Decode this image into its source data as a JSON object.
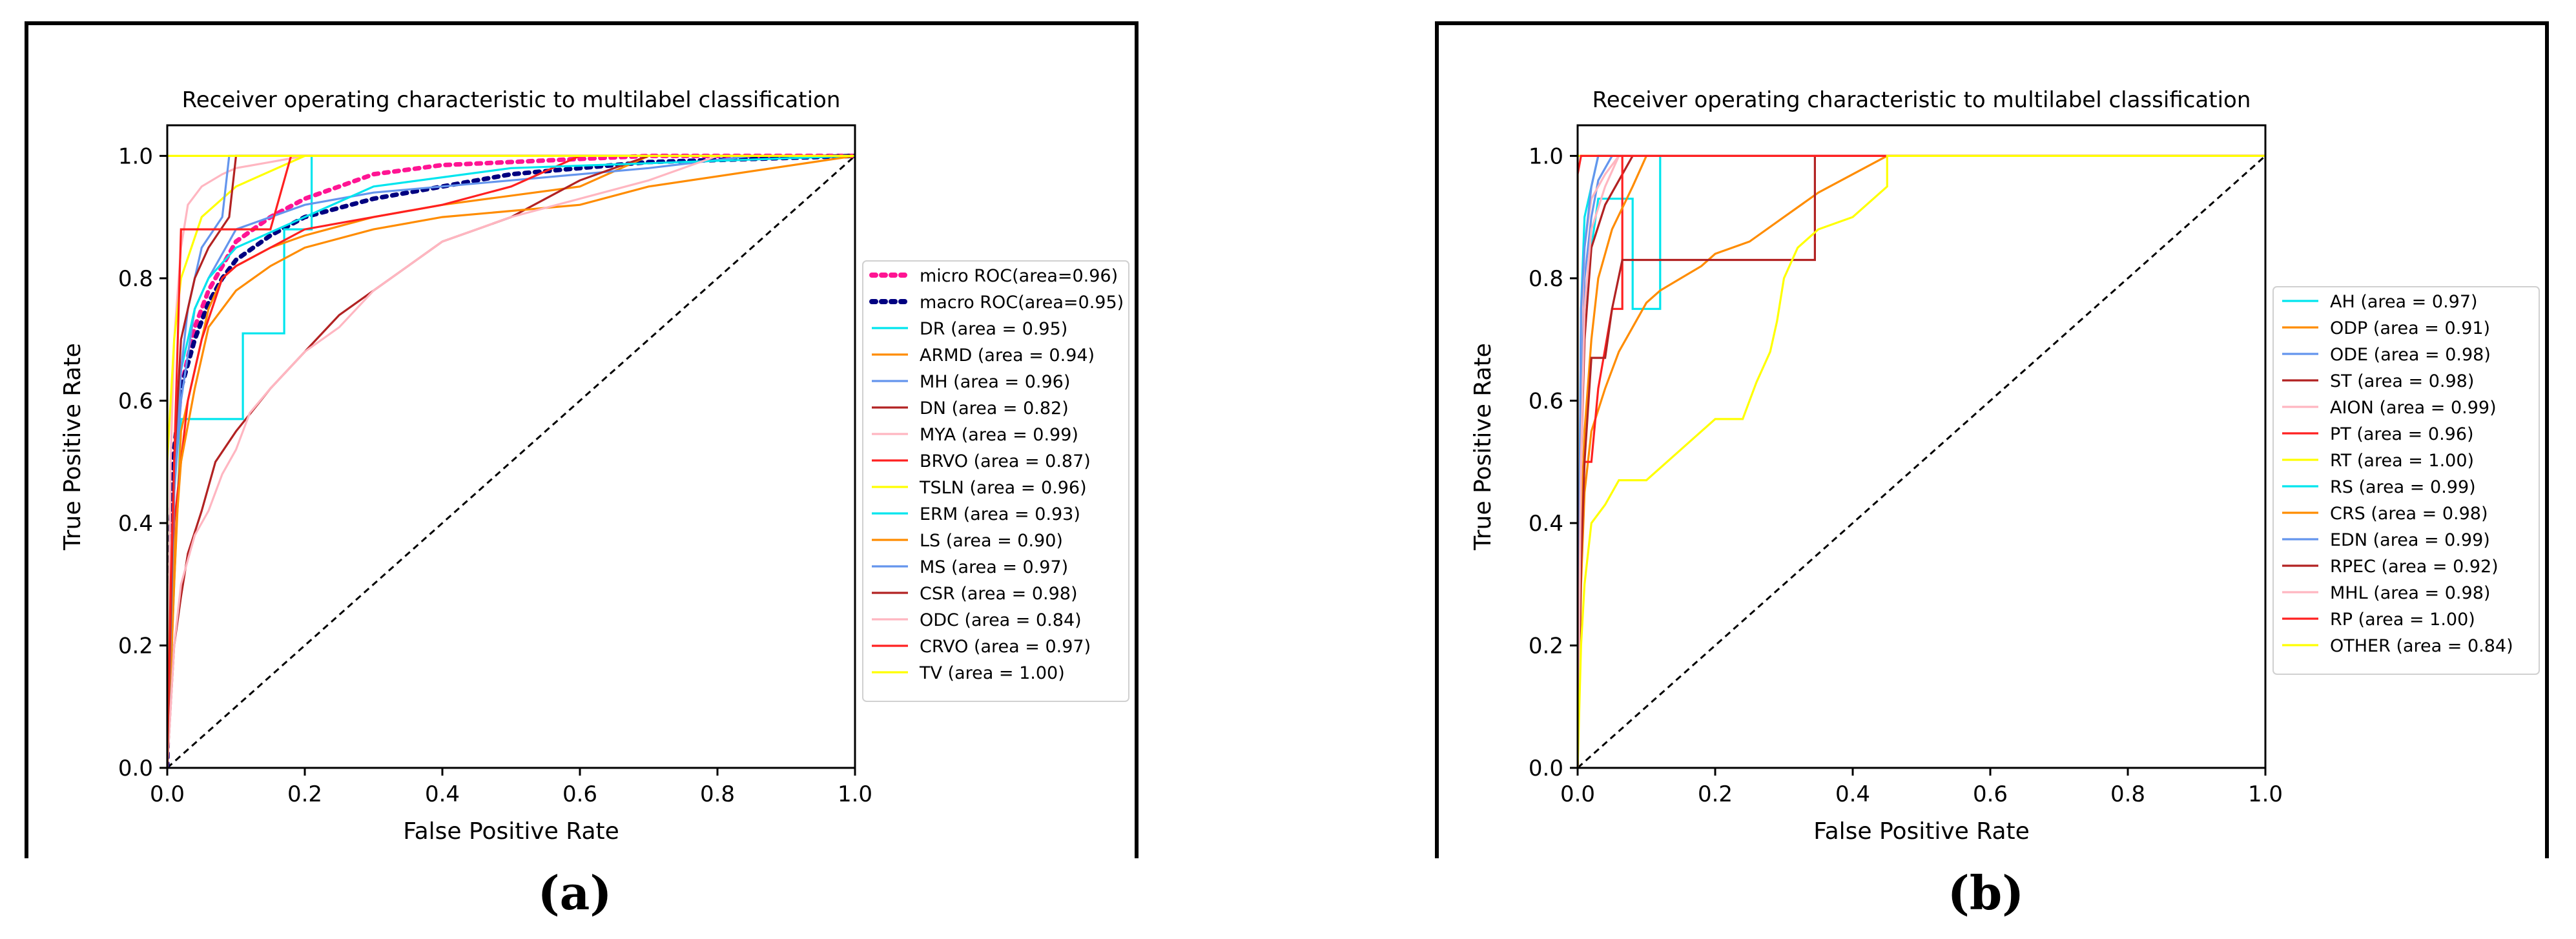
{
  "panel_labels": {
    "a": "(a)",
    "b": "(b)"
  },
  "chart_data": [
    {
      "type": "line",
      "title": "Receiver operating characteristic to multilabel classification",
      "xlabel": "False Positive Rate",
      "ylabel": "True Positive Rate",
      "xlim": [
        0,
        1
      ],
      "ylim": [
        0,
        1.05
      ],
      "xticks": [
        "0.0",
        "0.2",
        "0.4",
        "0.6",
        "0.8",
        "1.0"
      ],
      "yticks": [
        "0.0",
        "0.2",
        "0.4",
        "0.6",
        "0.8",
        "1.0"
      ],
      "legend_position": "right",
      "diagonal": "dashed black reference line",
      "series": [
        {
          "name": "micro ROC(area=0.96)",
          "color": "#ff1493",
          "style": "dotted",
          "x": [
            0,
            0.005,
            0.01,
            0.02,
            0.04,
            0.06,
            0.08,
            0.1,
            0.15,
            0.2,
            0.25,
            0.3,
            0.4,
            0.5,
            0.6,
            0.7,
            1
          ],
          "y": [
            0,
            0.35,
            0.5,
            0.62,
            0.72,
            0.78,
            0.82,
            0.86,
            0.9,
            0.93,
            0.95,
            0.97,
            0.985,
            0.99,
            0.995,
            1,
            1
          ]
        },
        {
          "name": "macro ROC(area=0.95)",
          "color": "#000080",
          "style": "dotted",
          "x": [
            0,
            0.005,
            0.01,
            0.02,
            0.04,
            0.06,
            0.08,
            0.1,
            0.15,
            0.2,
            0.3,
            0.4,
            0.5,
            0.6,
            0.7,
            1
          ],
          "y": [
            0,
            0.4,
            0.52,
            0.62,
            0.7,
            0.76,
            0.8,
            0.83,
            0.87,
            0.9,
            0.93,
            0.95,
            0.97,
            0.98,
            0.99,
            1
          ]
        },
        {
          "name": "DR (area = 0.95)",
          "color": "#00e5ee",
          "x": [
            0,
            0.01,
            0.02,
            0.05,
            0.05,
            0.11,
            0.11,
            0.17,
            0.17,
            0.21,
            0.21,
            0.3,
            0.5,
            1
          ],
          "y": [
            0,
            0.3,
            0.57,
            0.57,
            0.57,
            0.57,
            0.71,
            0.71,
            0.88,
            0.88,
            1,
            1,
            1,
            1
          ]
        },
        {
          "name": "ARMD (area = 0.94)",
          "color": "#ff8c00",
          "x": [
            0,
            0.01,
            0.02,
            0.04,
            0.06,
            0.08,
            0.1,
            0.15,
            0.2,
            0.3,
            0.4,
            0.6,
            0.7,
            1
          ],
          "y": [
            0,
            0.3,
            0.55,
            0.65,
            0.75,
            0.8,
            0.82,
            0.85,
            0.87,
            0.9,
            0.92,
            0.95,
            1,
            1
          ]
        },
        {
          "name": "MH (area = 0.96)",
          "color": "#6495ed",
          "x": [
            0,
            0.01,
            0.02,
            0.04,
            0.06,
            0.08,
            0.1,
            0.2,
            0.3,
            0.5,
            0.7,
            0.85,
            1
          ],
          "y": [
            0,
            0.45,
            0.6,
            0.75,
            0.8,
            0.84,
            0.88,
            0.92,
            0.94,
            0.96,
            0.98,
            1,
            1
          ]
        },
        {
          "name": "DN (area = 0.82)",
          "color": "#b22222",
          "x": [
            0,
            0.005,
            0.01,
            0.02,
            0.03,
            0.05,
            0.07,
            0.1,
            0.15,
            0.2,
            0.25,
            0.3,
            0.35,
            0.4,
            0.45,
            0.5,
            0.55,
            0.6,
            0.65,
            0.7,
            1
          ],
          "y": [
            0,
            0.1,
            0.2,
            0.28,
            0.35,
            0.42,
            0.5,
            0.55,
            0.62,
            0.68,
            0.74,
            0.78,
            0.82,
            0.86,
            0.88,
            0.9,
            0.93,
            0.96,
            0.98,
            1,
            1
          ]
        },
        {
          "name": "MYA (area = 0.99)",
          "color": "#ffb6c1",
          "x": [
            0,
            0.005,
            0.01,
            0.02,
            0.03,
            0.05,
            0.08,
            0.1,
            0.15,
            0.2,
            0.3,
            0.5,
            0.8,
            1
          ],
          "y": [
            0,
            0.5,
            0.7,
            0.85,
            0.92,
            0.95,
            0.97,
            0.98,
            0.99,
            1,
            1,
            1,
            1,
            1
          ]
        },
        {
          "name": "BRVO (area = 0.87)",
          "color": "#ff2020",
          "x": [
            0,
            0.005,
            0.01,
            0.02,
            0.03,
            0.05,
            0.08,
            0.1,
            0.15,
            0.2,
            0.3,
            0.4,
            0.5,
            0.6,
            1
          ],
          "y": [
            0,
            0.2,
            0.4,
            0.5,
            0.6,
            0.7,
            0.8,
            0.82,
            0.85,
            0.88,
            0.9,
            0.92,
            0.95,
            1,
            1
          ]
        },
        {
          "name": "TSLN (area = 0.96)",
          "color": "#ffff00",
          "x": [
            0,
            0.0,
            0.01,
            0.02,
            0.05,
            0.1,
            0.2,
            1
          ],
          "y": [
            0,
            0.5,
            0.7,
            0.8,
            0.9,
            0.95,
            1,
            1
          ]
        },
        {
          "name": "ERM (area = 0.93)",
          "color": "#00e5ee",
          "x": [
            0,
            0.01,
            0.02,
            0.04,
            0.06,
            0.1,
            0.2,
            0.3,
            0.5,
            1
          ],
          "y": [
            0,
            0.5,
            0.65,
            0.75,
            0.8,
            0.85,
            0.9,
            0.95,
            0.98,
            1
          ]
        },
        {
          "name": "LS (area = 0.90)",
          "color": "#ff8c00",
          "x": [
            0,
            0.01,
            0.02,
            0.04,
            0.06,
            0.1,
            0.15,
            0.2,
            0.3,
            0.4,
            0.6,
            0.7,
            1
          ],
          "y": [
            0,
            0.35,
            0.5,
            0.62,
            0.72,
            0.78,
            0.82,
            0.85,
            0.88,
            0.9,
            0.92,
            0.95,
            1
          ]
        },
        {
          "name": "MS (area = 0.97)",
          "color": "#6495ed",
          "x": [
            0,
            0.01,
            0.02,
            0.03,
            0.05,
            0.08,
            0.09,
            0.1,
            0.2,
            0.5,
            1
          ],
          "y": [
            0,
            0.45,
            0.65,
            0.75,
            0.85,
            0.9,
            1,
            1,
            1,
            1,
            1
          ]
        },
        {
          "name": "CSR (area = 0.98)",
          "color": "#b22222",
          "x": [
            0,
            0.01,
            0.02,
            0.04,
            0.06,
            0.09,
            0.1,
            0.2,
            1
          ],
          "y": [
            0,
            0.5,
            0.7,
            0.8,
            0.85,
            0.9,
            1,
            1,
            1
          ]
        },
        {
          "name": "ODC (area = 0.84)",
          "color": "#ffb6c1",
          "x": [
            0,
            0.01,
            0.02,
            0.04,
            0.06,
            0.08,
            0.1,
            0.12,
            0.15,
            0.2,
            0.25,
            0.3,
            0.35,
            0.4,
            0.5,
            0.6,
            0.7,
            0.8,
            1
          ],
          "y": [
            0,
            0.2,
            0.3,
            0.38,
            0.42,
            0.48,
            0.52,
            0.58,
            0.62,
            0.68,
            0.72,
            0.78,
            0.82,
            0.86,
            0.9,
            0.93,
            0.96,
            1,
            1
          ]
        },
        {
          "name": "CRVO (area = 0.97)",
          "color": "#ff2020",
          "x": [
            0,
            0.005,
            0.01,
            0.02,
            0.05,
            0.15,
            0.18,
            0.2,
            1
          ],
          "y": [
            0,
            0.3,
            0.5,
            0.88,
            0.88,
            0.88,
            1,
            1,
            1
          ]
        },
        {
          "name": "TV (area = 1.00)",
          "color": "#ffff00",
          "x": [
            0,
            0,
            1
          ],
          "y": [
            0,
            1,
            1
          ]
        }
      ]
    },
    {
      "type": "line",
      "title": "Receiver operating characteristic to multilabel classification",
      "xlabel": "False Positive Rate",
      "ylabel": "True Positive Rate",
      "xlim": [
        0,
        1
      ],
      "ylim": [
        0,
        1.05
      ],
      "xticks": [
        "0.0",
        "0.2",
        "0.4",
        "0.6",
        "0.8",
        "1.0"
      ],
      "yticks": [
        "0.0",
        "0.2",
        "0.4",
        "0.6",
        "0.8",
        "1.0"
      ],
      "legend_position": "right",
      "diagonal": "dashed black reference line",
      "series": [
        {
          "name": "AH (area = 0.97)",
          "color": "#00e5ee",
          "x": [
            0,
            0.005,
            0.01,
            0.02,
            0.03,
            0.08,
            0.08,
            0.12,
            0.12,
            0.2,
            1
          ],
          "y": [
            0,
            0.6,
            0.75,
            0.85,
            0.93,
            0.93,
            0.75,
            0.75,
            1,
            1,
            1
          ]
        },
        {
          "name": "ODP (area = 0.91)",
          "color": "#ff8c00",
          "x": [
            0,
            0.005,
            0.01,
            0.02,
            0.04,
            0.06,
            0.08,
            0.1,
            0.12,
            0.15,
            0.18,
            0.2,
            0.25,
            0.3,
            0.35,
            0.4,
            0.45,
            1
          ],
          "y": [
            0,
            0.3,
            0.45,
            0.55,
            0.62,
            0.68,
            0.72,
            0.76,
            0.78,
            0.8,
            0.82,
            0.84,
            0.86,
            0.9,
            0.94,
            0.97,
            1,
            1
          ]
        },
        {
          "name": "ODE (area = 0.98)",
          "color": "#6495ed",
          "x": [
            0,
            0.005,
            0.01,
            0.02,
            0.03,
            0.04,
            0.05,
            1
          ],
          "y": [
            0,
            0.6,
            0.8,
            0.9,
            0.96,
            0.98,
            1,
            1
          ]
        },
        {
          "name": "ST (area = 0.98)",
          "color": "#b22222",
          "x": [
            0,
            0.005,
            0.01,
            0.02,
            0.04,
            0.06,
            0.08,
            1
          ],
          "y": [
            0,
            0.5,
            0.7,
            0.85,
            0.92,
            0.96,
            1,
            1
          ]
        },
        {
          "name": "AION (area = 0.99)",
          "color": "#ffb6c1",
          "x": [
            0,
            0.005,
            0.01,
            0.02,
            0.04,
            0.06,
            1
          ],
          "y": [
            0,
            0.7,
            0.85,
            0.93,
            0.97,
            1,
            1
          ]
        },
        {
          "name": "PT (area = 0.96)",
          "color": "#ff2020",
          "x": [
            0,
            0.005,
            0.01,
            0.02,
            0.03,
            0.05,
            0.065,
            0.065,
            1
          ],
          "y": [
            0,
            0.38,
            0.5,
            0.5,
            0.62,
            0.75,
            0.75,
            1,
            1
          ]
        },
        {
          "name": "RT (area = 1.00)",
          "color": "#ffff00",
          "x": [
            0,
            0,
            1
          ],
          "y": [
            0,
            1,
            1
          ]
        },
        {
          "name": "RS (area = 0.99)",
          "color": "#00e5ee",
          "x": [
            0,
            0.005,
            0.01,
            0.02,
            0.03,
            1
          ],
          "y": [
            0,
            0.75,
            0.9,
            0.95,
            1,
            1
          ]
        },
        {
          "name": "CRS (area = 0.98)",
          "color": "#ff8c00",
          "x": [
            0,
            0.005,
            0.01,
            0.02,
            0.03,
            0.05,
            0.08,
            0.1,
            1
          ],
          "y": [
            0,
            0.4,
            0.55,
            0.7,
            0.8,
            0.88,
            0.95,
            1,
            1
          ]
        },
        {
          "name": "EDN (area = 0.99)",
          "color": "#6495ed",
          "x": [
            0,
            0.005,
            0.01,
            0.02,
            0.03,
            1
          ],
          "y": [
            0,
            0.75,
            0.85,
            0.95,
            1,
            1
          ]
        },
        {
          "name": "RPEC (area = 0.92)",
          "color": "#b22222",
          "x": [
            0,
            0.005,
            0.01,
            0.02,
            0.04,
            0.05,
            0.065,
            0.1,
            0.2,
            0.3,
            0.345,
            0.345,
            1
          ],
          "y": [
            0,
            0.33,
            0.5,
            0.67,
            0.67,
            0.75,
            0.83,
            0.83,
            0.83,
            0.83,
            0.83,
            1,
            1
          ]
        },
        {
          "name": "MHL (area = 0.98)",
          "color": "#ffb6c1",
          "x": [
            0,
            0.005,
            0.01,
            0.02,
            0.04,
            0.06,
            1
          ],
          "y": [
            0,
            0.5,
            0.75,
            0.88,
            0.95,
            1,
            1
          ]
        },
        {
          "name": "RP (area = 1.00)",
          "color": "#ff2020",
          "x": [
            0,
            0.0,
            0.005,
            1
          ],
          "y": [
            0,
            0.97,
            1,
            1
          ]
        },
        {
          "name": "OTHER (area = 0.84)",
          "color": "#ffff00",
          "x": [
            0,
            0.005,
            0.01,
            0.02,
            0.04,
            0.06,
            0.08,
            0.1,
            0.15,
            0.2,
            0.24,
            0.26,
            0.28,
            0.29,
            0.3,
            0.32,
            0.35,
            0.4,
            0.45,
            0.45,
            1
          ],
          "y": [
            0,
            0.2,
            0.3,
            0.4,
            0.43,
            0.47,
            0.47,
            0.47,
            0.52,
            0.57,
            0.57,
            0.63,
            0.68,
            0.73,
            0.8,
            0.85,
            0.88,
            0.9,
            0.95,
            1,
            1
          ]
        }
      ]
    }
  ]
}
